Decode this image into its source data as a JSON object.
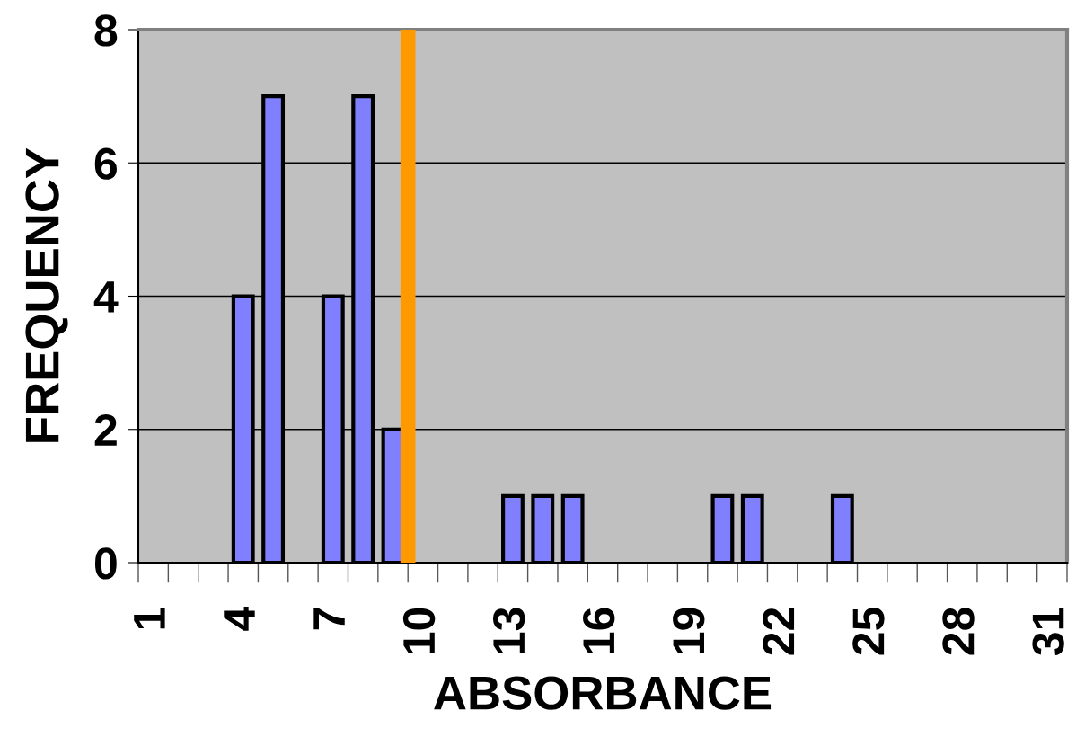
{
  "chart_data": {
    "type": "bar",
    "xlabel": "ABSORBANCE",
    "ylabel": "FREQUENCY",
    "x": [
      4,
      5,
      7,
      8,
      9,
      13,
      14,
      15,
      20,
      21,
      24
    ],
    "values": [
      4,
      7,
      4,
      7,
      2,
      1,
      1,
      1,
      1,
      1,
      1
    ],
    "color": "#8080ff",
    "xlim": [
      0.5,
      31.5
    ],
    "xticks": [
      1,
      4,
      7,
      10,
      13,
      16,
      19,
      22,
      25,
      28,
      31
    ],
    "ylim": [
      0,
      8
    ],
    "yticks": [
      0,
      2,
      4,
      6,
      8
    ],
    "grid": "y",
    "ref_lines": [
      {
        "axis": "x",
        "value": 9.5,
        "color": "#ff9900"
      }
    ]
  }
}
